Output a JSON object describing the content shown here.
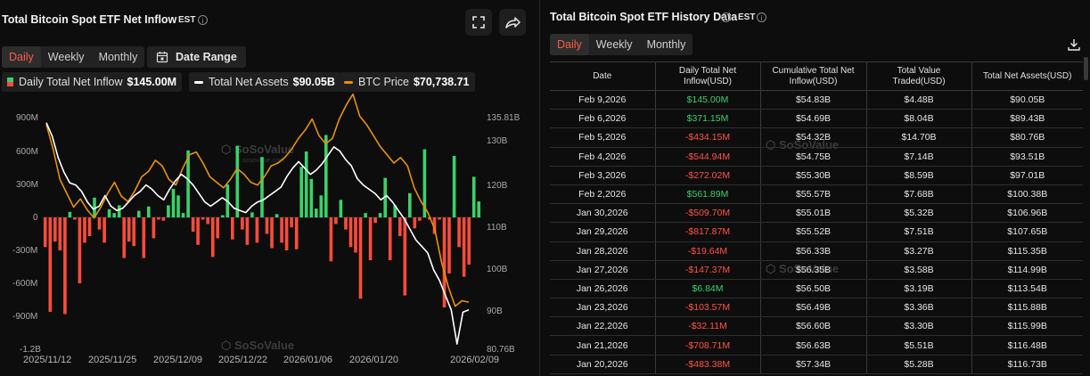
{
  "chart_panel": {
    "title": "Total Bitcoin Spot ETF Net Inflow",
    "timezone": "EST",
    "info": "i",
    "tabs": [
      "Daily",
      "Weekly",
      "Monthly"
    ],
    "active_tab": "Daily",
    "date_range_label": "Date Range",
    "legend": [
      {
        "label": "Daily Total Net Inflow",
        "value": "$145.00M"
      },
      {
        "label": "Total Net Assets",
        "value": "$90.05B",
        "color": "#ffffff"
      },
      {
        "label": "BTC Price",
        "value": "$70,738.71",
        "color": "#e8920c"
      }
    ],
    "watermark": "SoSoValue",
    "watermark_sub": "sosovalue.com"
  },
  "chart_data": {
    "type": "bar",
    "x_tick_labels": [
      "2025/11/12",
      "2025/11/25",
      "2025/12/09",
      "2025/12/22",
      "2026/01/06",
      "2026/01/20",
      "2026/02/09"
    ],
    "left_axis_labels": [
      "900M",
      "600M",
      "300M",
      "0",
      "-300M",
      "-600M",
      "-900M",
      "-1.2B"
    ],
    "right_axis_labels": [
      "135.81B",
      "130B",
      "120B",
      "110B",
      "100B",
      "90B",
      "80.76B"
    ],
    "ylim": [
      -1200,
      900
    ],
    "y2lim": [
      80.76,
      135.81
    ],
    "colors": {
      "positive": "#3ad16b",
      "negative": "#ff4c3b",
      "net_assets": "#ffffff",
      "btc_price": "#e8920c"
    },
    "series": [
      {
        "name": "Daily Total Net Inflow",
        "unit": "M",
        "values": [
          -270,
          -860,
          -220,
          -300,
          -880,
          50,
          -20,
          -600,
          -230,
          -170,
          180,
          -110,
          -230,
          75,
          40,
          110,
          -370,
          -220,
          -260,
          60,
          -370,
          100,
          -190,
          -20,
          -30,
          110,
          260,
          200,
          40,
          610,
          -130,
          -250,
          -20,
          -60,
          -360,
          -190,
          20,
          300,
          -200,
          650,
          -110,
          -250,
          45,
          -230,
          550,
          -150,
          -280,
          30,
          -230,
          -300,
          -90,
          -290,
          460,
          600,
          350,
          80,
          200,
          750,
          -400,
          -60,
          160,
          -110,
          -270,
          -320,
          -740,
          40,
          -390,
          -50,
          40,
          360,
          -390,
          110,
          -170,
          -710,
          220,
          -100,
          -30,
          620,
          -20,
          -150,
          -20,
          -820,
          -510,
          560,
          -270,
          -540,
          -430,
          370,
          145
        ]
      },
      {
        "name": "Total Net Assets",
        "unit": "B",
        "values": [
          134.2,
          131.0,
          126.0,
          122.5,
          120.0,
          119.5,
          118.0,
          115.5,
          113.8,
          114.5,
          117.0,
          114.5,
          113.5,
          114.0,
          115.5,
          117.0,
          118.0,
          119.5,
          118.5,
          117.0,
          116.0,
          118.5,
          120.5,
          122.0,
          121.0,
          119.5,
          117.5,
          115.5,
          114.5,
          115.5,
          116.5,
          115.5,
          114.0,
          113.5,
          113.0,
          114.5,
          115.5,
          116.0,
          117.0,
          118.0,
          119.0,
          121.5,
          123.5,
          125.0,
          123.5,
          122.0,
          123.0,
          124.5,
          126.5,
          128.5,
          127.5,
          125.5,
          124.0,
          121.0,
          119.5,
          118.5,
          117.5,
          116.0,
          117.0,
          115.5,
          113.5,
          111.5,
          109.0,
          106.5,
          105.0,
          103.5,
          99.5,
          97.0,
          93.5,
          90.05,
          82.0,
          89.5,
          90.05
        ]
      },
      {
        "name": "BTC Price",
        "unit": "USD",
        "values": [
          103000,
          98500,
          93000,
          90500,
          88000,
          89500,
          87500,
          86000,
          88000,
          90500,
          92500,
          90000,
          89000,
          91000,
          93500,
          94500,
          96500,
          95500,
          93000,
          92000,
          95000,
          97500,
          98000,
          96000,
          93500,
          92500,
          91500,
          93000,
          95000,
          94000,
          92500,
          92000,
          93500,
          95500,
          96000,
          97000,
          98500,
          100500,
          102000,
          104000,
          101000,
          99500,
          100500,
          104000,
          106500,
          108500,
          104500,
          103000,
          101000,
          99000,
          97500,
          96000,
          97000,
          95500,
          91500,
          89000,
          87000,
          84000,
          78000,
          73500,
          70000,
          71000,
          70738.71
        ]
      }
    ]
  },
  "table_panel": {
    "title": "Total Bitcoin Spot ETF History Data",
    "timezone": "EST",
    "tabs": [
      "Daily",
      "Weekly",
      "Monthly"
    ],
    "active_tab": "Daily",
    "watermark": "SoSoValue",
    "columns": [
      "Date",
      "Daily Total Net Inflow(USD)",
      "Cumulative Total Net Inflow(USD)",
      "Total Value Traded(USD)",
      "Total Net Assets(USD)"
    ],
    "rows": [
      [
        "Feb 9,2026",
        "$145.00M",
        "$54.83B",
        "$4.48B",
        "$90.05B"
      ],
      [
        "Feb 6,2026",
        "$371.15M",
        "$54.69B",
        "$8.04B",
        "$89.43B"
      ],
      [
        "Feb 5,2026",
        "-$434.15M",
        "$54.32B",
        "$14.70B",
        "$80.76B"
      ],
      [
        "Feb 4,2026",
        "-$544.94M",
        "$54.75B",
        "$7.14B",
        "$93.51B"
      ],
      [
        "Feb 3,2026",
        "-$272.02M",
        "$55.30B",
        "$8.59B",
        "$97.01B"
      ],
      [
        "Feb 2,2026",
        "$561.89M",
        "$55.57B",
        "$7.68B",
        "$100.38B"
      ],
      [
        "Jan 30,2026",
        "-$509.70M",
        "$55.01B",
        "$5.32B",
        "$106.96B"
      ],
      [
        "Jan 29,2026",
        "-$817.87M",
        "$55.52B",
        "$7.51B",
        "$107.65B"
      ],
      [
        "Jan 28,2026",
        "-$19.64M",
        "$56.33B",
        "$3.27B",
        "$115.35B"
      ],
      [
        "Jan 27,2026",
        "-$147.37M",
        "$56.35B",
        "$3.58B",
        "$114.99B"
      ],
      [
        "Jan 26,2026",
        "$6.84M",
        "$56.50B",
        "$3.19B",
        "$113.54B"
      ],
      [
        "Jan 23,2026",
        "-$103.57M",
        "$56.49B",
        "$3.36B",
        "$115.88B"
      ],
      [
        "Jan 22,2026",
        "-$32.11M",
        "$56.60B",
        "$3.30B",
        "$115.99B"
      ],
      [
        "Jan 21,2026",
        "-$708.71M",
        "$56.63B",
        "$5.51B",
        "$116.48B"
      ],
      [
        "Jan 20,2026",
        "-$483.38M",
        "$57.34B",
        "$5.28B",
        "$116.73B"
      ]
    ]
  }
}
